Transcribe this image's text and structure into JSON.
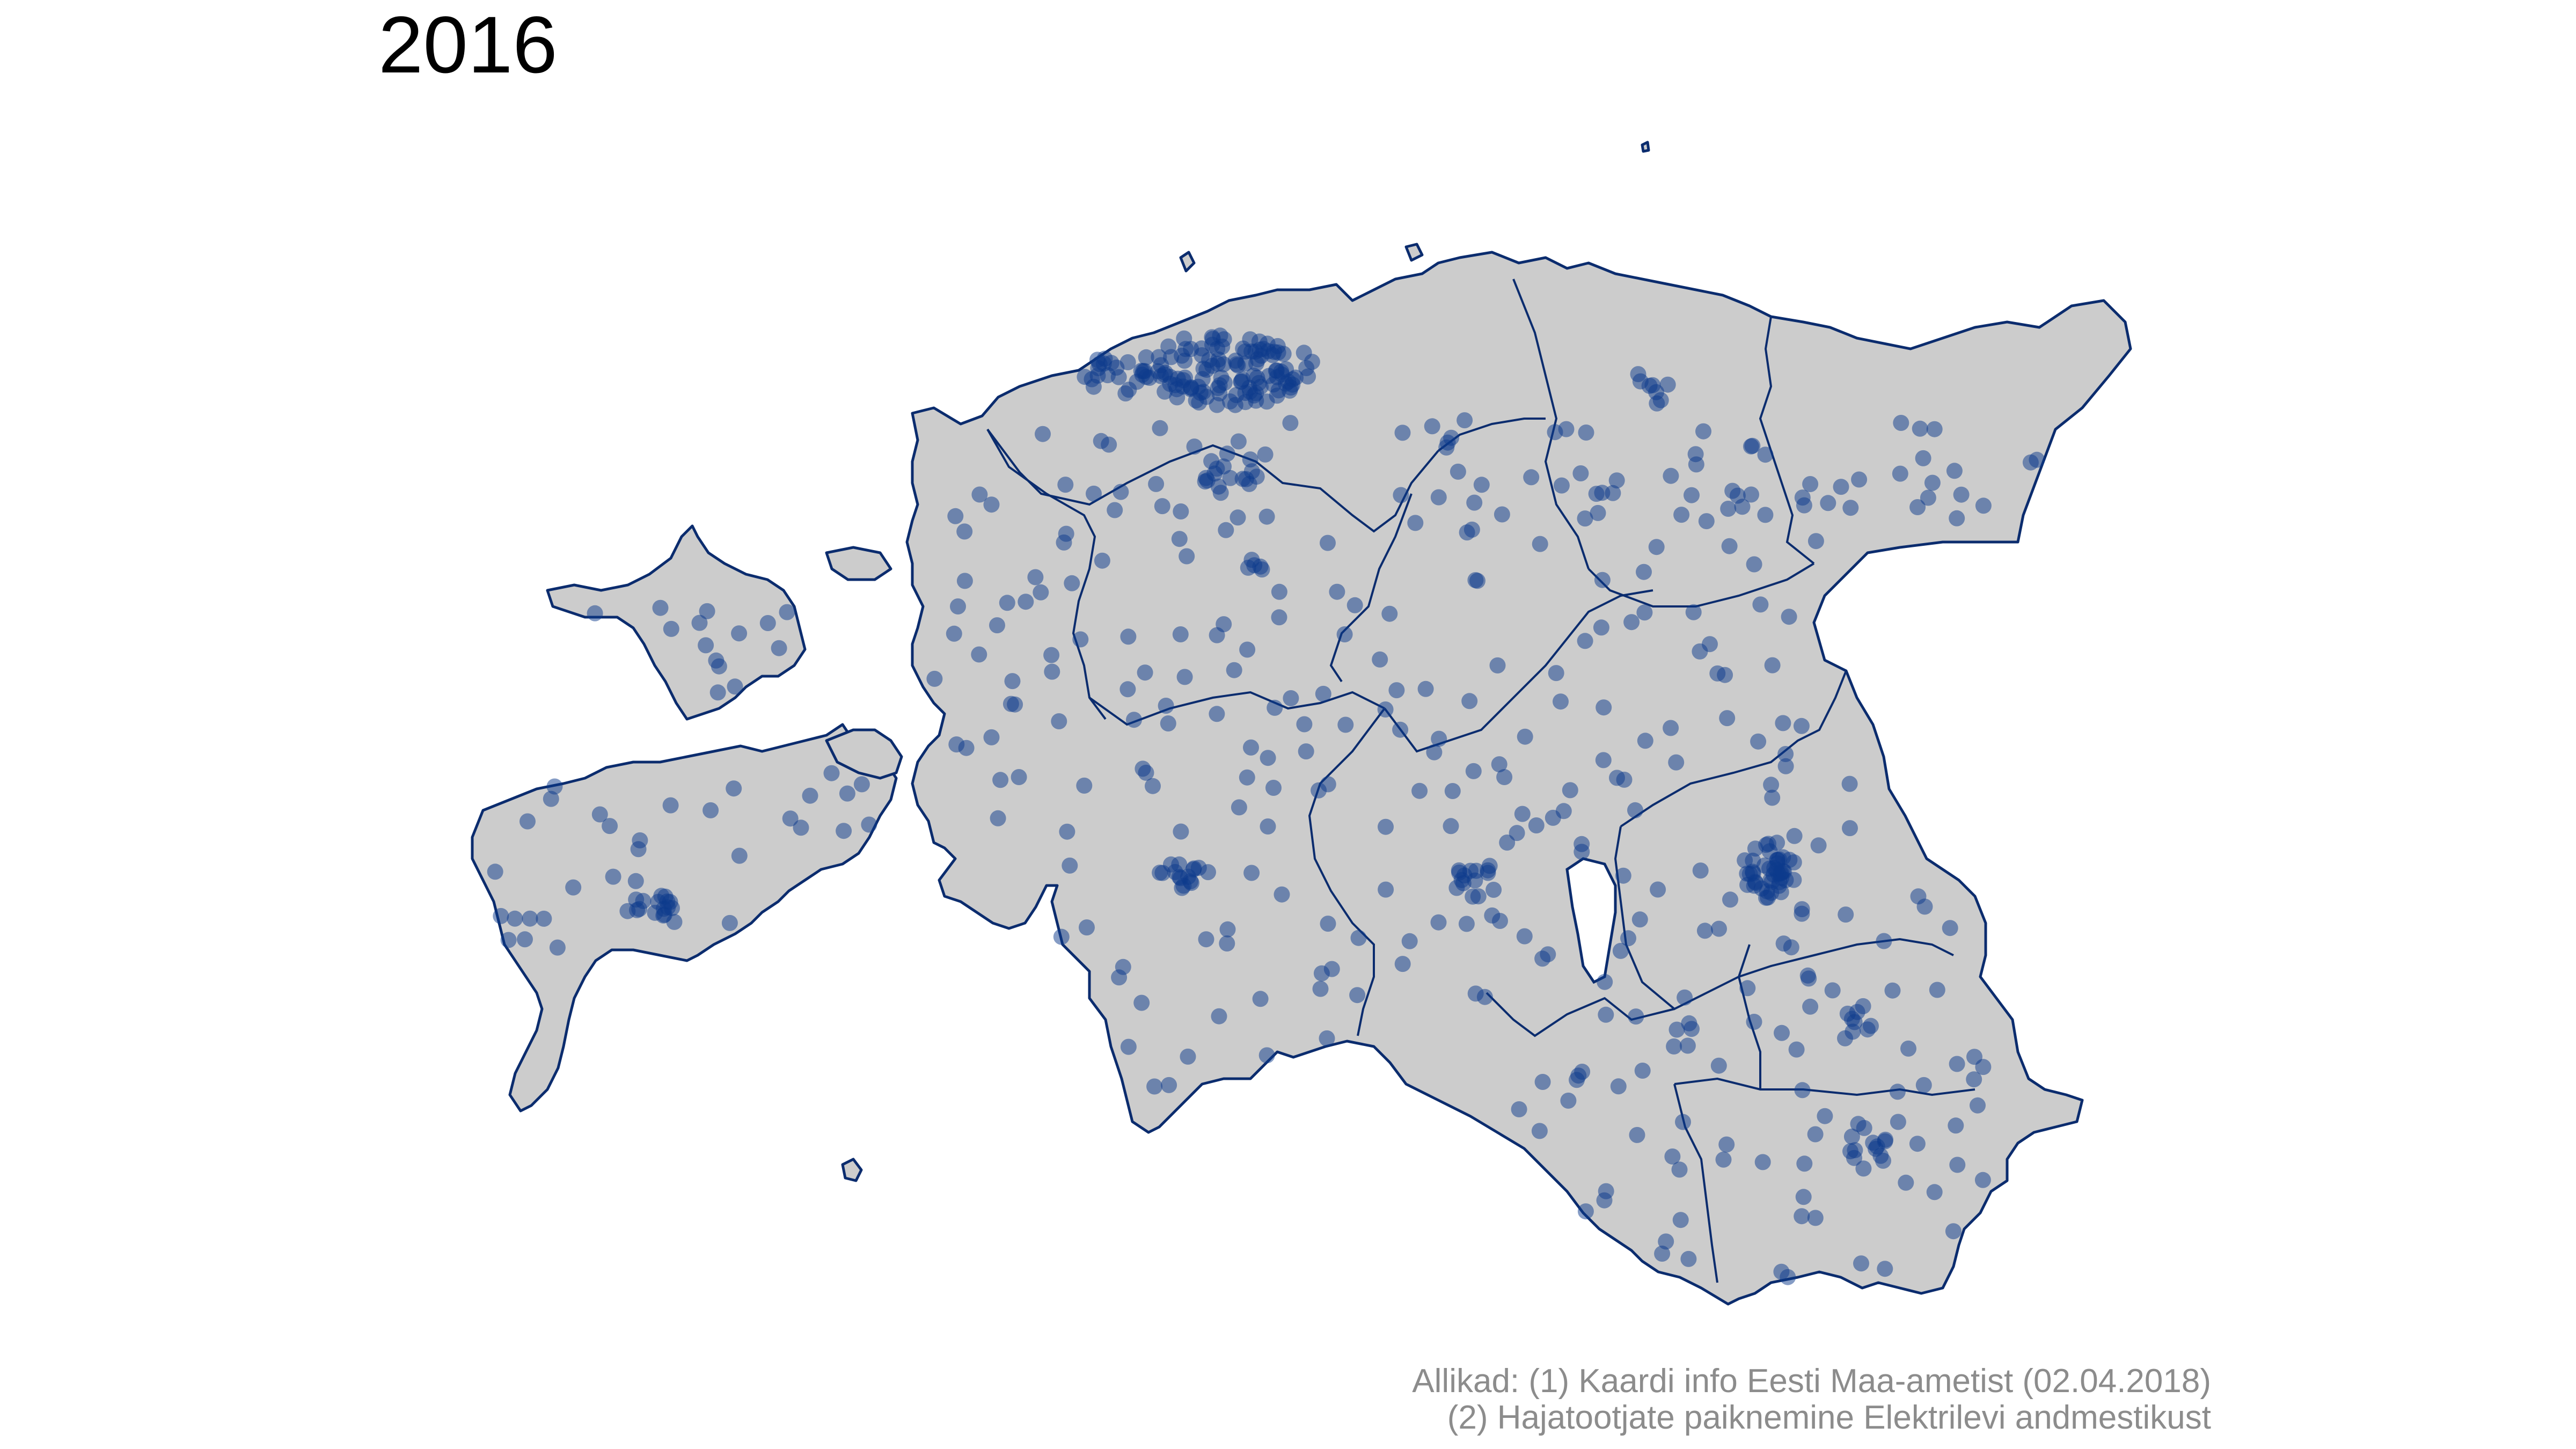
{
  "title": "2016",
  "caption": {
    "line1": "Allikad: (1) Kaardi info Eesti Maa-ametist (02.04.2018)",
    "line2": "(2) Hajatootjate paiknemine Elektrilevi andmestikust"
  },
  "colors": {
    "land_fill": "#cccccc",
    "border": "#0b2c6e",
    "point": "#0b3a8c",
    "background": "#ffffff",
    "caption_text": "#8c8c8c"
  },
  "map_region": "Estonia"
}
